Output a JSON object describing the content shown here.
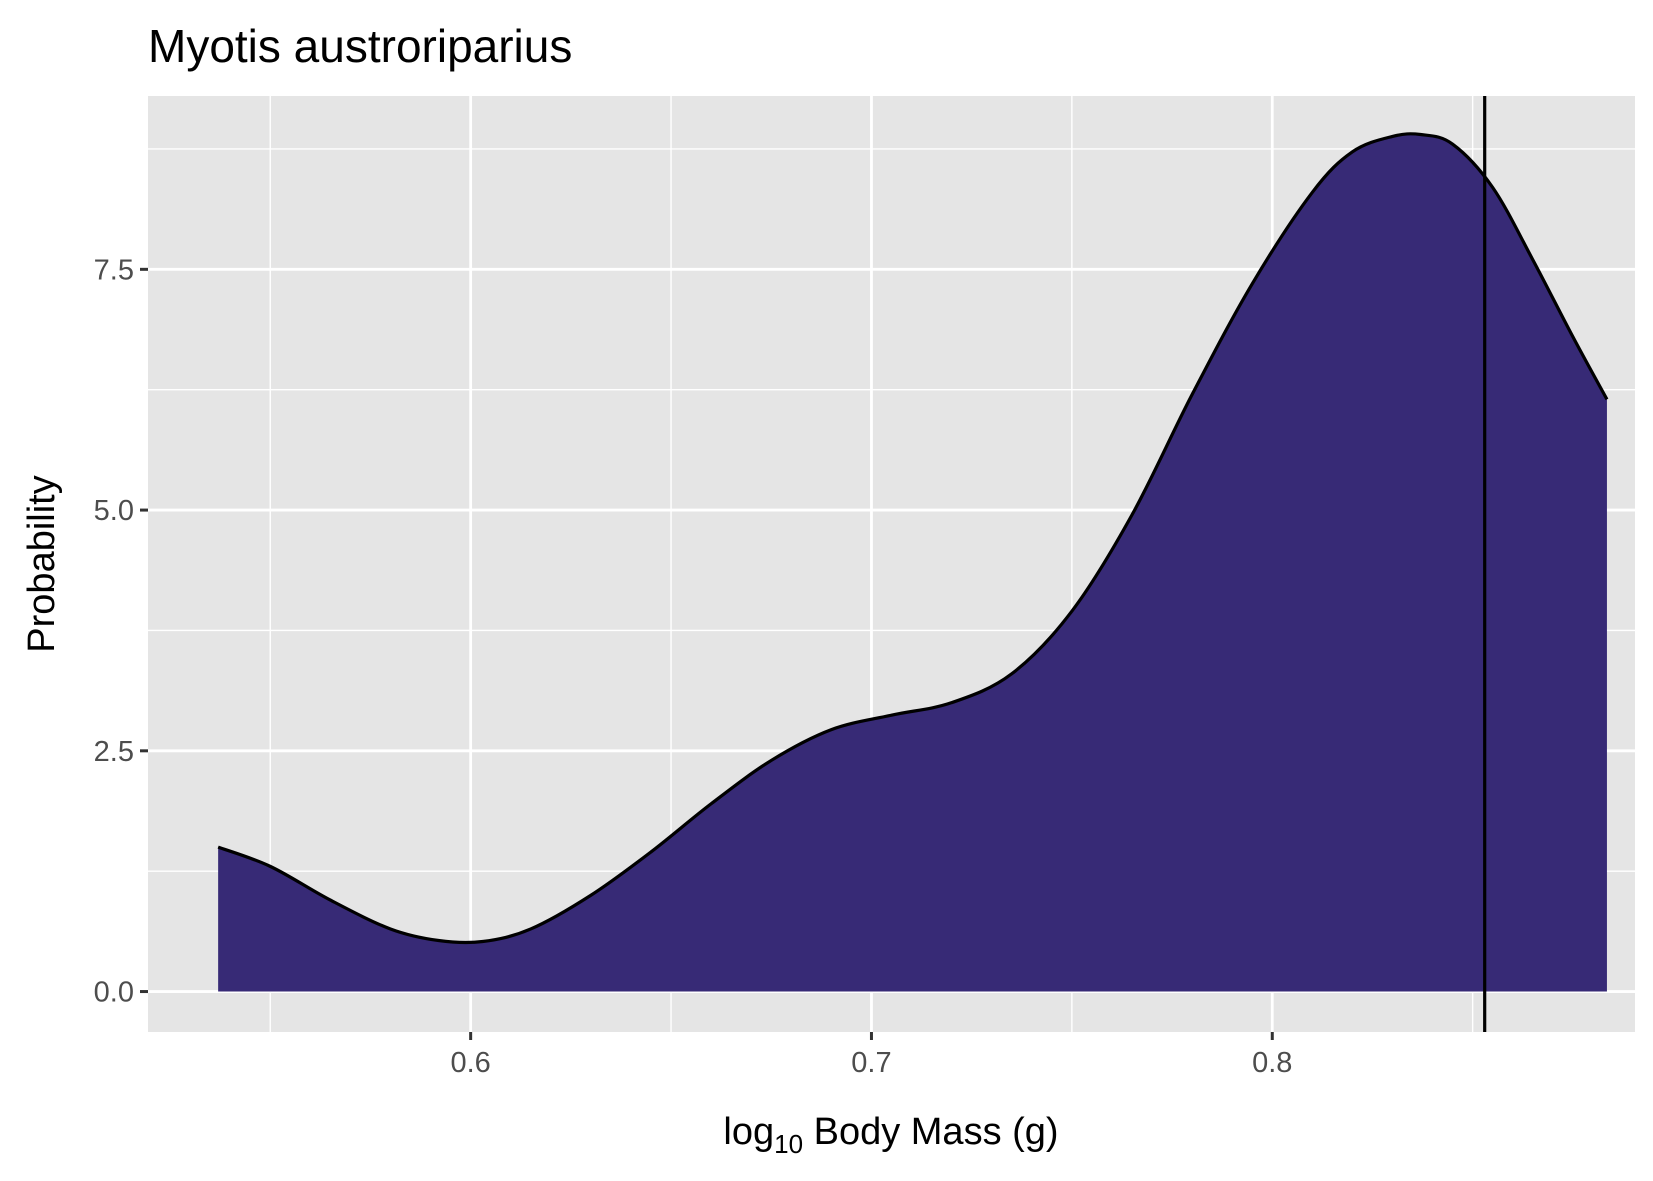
{
  "chart_data": {
    "type": "area",
    "title": "Myotis austroriparius",
    "xlabel": {
      "prefix": "log",
      "subscript": "10",
      "suffix": " Body Mass (g)"
    },
    "ylabel": "Probability",
    "xlim": [
      0.5195,
      0.8905
    ],
    "ylim": [
      -0.42,
      9.3
    ],
    "x_ticks": [
      0.6,
      0.7,
      0.8
    ],
    "x_tick_labels": [
      "0.6",
      "0.7",
      "0.8"
    ],
    "x_minor_ticks": [
      0.55,
      0.65,
      0.75,
      0.85
    ],
    "y_ticks": [
      0.0,
      2.5,
      5.0,
      7.5
    ],
    "y_tick_labels": [
      "0.0",
      "2.5",
      "5.0",
      "7.5"
    ],
    "y_minor_ticks": [
      1.25,
      3.75,
      6.25,
      8.75
    ],
    "grid": true,
    "fill_color": "#372A76",
    "line_color": "#000000",
    "panel_color": "#E5E5E5",
    "grid_color": "#FFFFFF",
    "vline_x": 0.853,
    "series": [
      {
        "x": [
          0.537,
          0.55,
          0.565,
          0.58,
          0.592,
          0.603,
          0.615,
          0.63,
          0.645,
          0.66,
          0.675,
          0.69,
          0.705,
          0.72,
          0.735,
          0.75,
          0.765,
          0.78,
          0.795,
          0.81,
          0.82,
          0.83,
          0.837,
          0.845,
          0.855,
          0.865,
          0.875,
          0.8835
        ],
        "y": [
          1.5,
          1.3,
          0.95,
          0.65,
          0.53,
          0.52,
          0.65,
          1.0,
          1.45,
          1.95,
          2.4,
          2.72,
          2.87,
          3.0,
          3.3,
          3.95,
          4.95,
          6.2,
          7.35,
          8.3,
          8.72,
          8.88,
          8.9,
          8.8,
          8.35,
          7.6,
          6.8,
          6.15
        ]
      }
    ]
  }
}
